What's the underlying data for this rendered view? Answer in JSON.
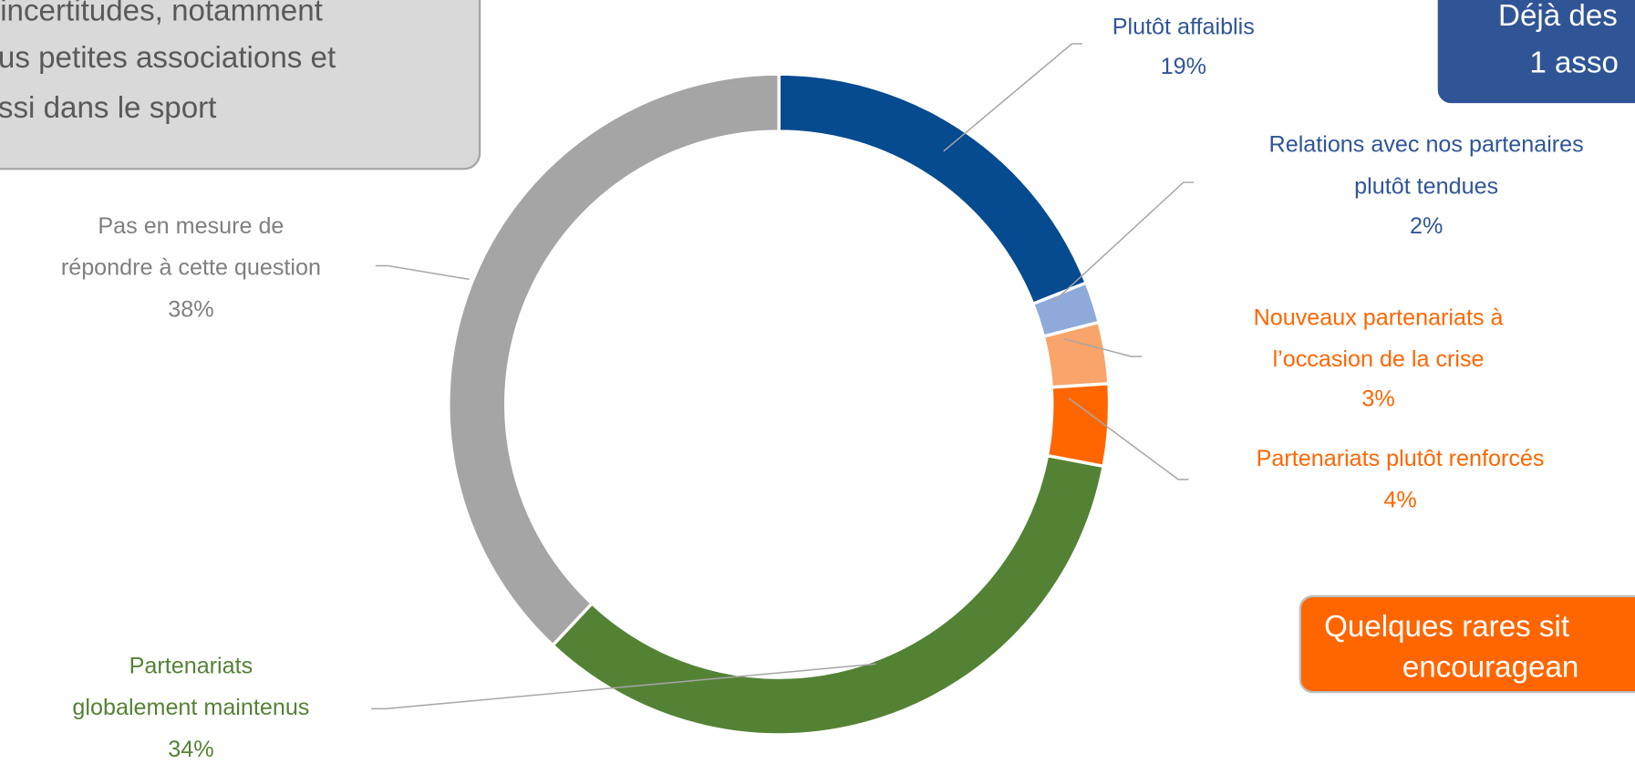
{
  "chart_data": {
    "type": "donut",
    "categories": [
      [
        "Plutôt affaiblis"
      ],
      [
        "Relations avec nos partenaires",
        "plutôt tendues"
      ],
      [
        "Nouveaux partenariats à",
        "l’occasion de la crise"
      ],
      [
        "Partenariats plutôt renforcés"
      ],
      [
        "Partenariats",
        "globalement maintenus"
      ],
      [
        "Pas en mesure de",
        "répondre à cette question"
      ]
    ],
    "values": [
      19,
      2,
      3,
      4,
      34,
      38
    ],
    "value_labels": [
      "19%",
      "2%",
      "3%",
      "4%",
      "34%",
      "38%"
    ],
    "colors": [
      "#064a8f",
      "#8eaadb",
      "#f8a46a",
      "#ff6600",
      "#548235",
      "#a5a5a5"
    ],
    "label_colors": [
      "#2f5597",
      "#2f5597",
      "#ff6600",
      "#ff6600",
      "#548235",
      "#7f7f7f"
    ],
    "annotations": [
      {
        "lines": [
          "incertitudes, notamment",
          "us petites associations et",
          "ssi dans le sport"
        ],
        "fill": "#d9d9d9",
        "color": "#595959"
      },
      {
        "lines": [
          "Déjà des",
          "1 asso"
        ],
        "fill": "#2f5597",
        "color": "#ffffff"
      },
      {
        "lines": [
          "Quelques rares sit",
          "encouragean"
        ],
        "fill": "#ff6600",
        "color": "#ffffff"
      }
    ]
  }
}
